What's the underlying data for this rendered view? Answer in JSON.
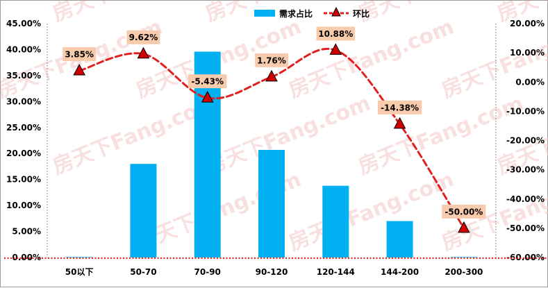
{
  "chart_data": {
    "type": "bar+line",
    "categories": [
      "50以下",
      "50-70",
      "70-90",
      "90-120",
      "120-144",
      "144-200",
      "200-300"
    ],
    "series": [
      {
        "name": "需求占比",
        "type": "bar",
        "axis": "left",
        "color": "#00b0f0",
        "values": [
          0.1,
          18.0,
          39.6,
          20.7,
          13.8,
          7.0,
          0.1
        ]
      },
      {
        "name": "环比",
        "type": "line",
        "axis": "right",
        "color": "#e02020",
        "marker": "triangle",
        "marker_color": "#d00000",
        "label_bg": "#f8cbad",
        "values": [
          3.85,
          9.62,
          -5.43,
          1.76,
          10.88,
          -14.38,
          -50.0
        ],
        "labels": [
          "3.85%",
          "9.62%",
          "-5.43%",
          "1.76%",
          "10.88%",
          "-14.38%",
          "-50.00%"
        ]
      }
    ],
    "y_left": {
      "min": 0,
      "max": 45,
      "step": 5,
      "ticks": [
        "0.00%",
        "5.00%",
        "10.00%",
        "15.00%",
        "20.00%",
        "25.00%",
        "30.00%",
        "35.00%",
        "40.00%",
        "45.00%"
      ]
    },
    "y_right": {
      "min": -60,
      "max": 20,
      "step": 10,
      "ticks": [
        "-60.00%",
        "-50.00%",
        "-40.00%",
        "-30.00%",
        "-20.00%",
        "-10.00%",
        "0.00%",
        "10.00%",
        "20.00%"
      ]
    },
    "legend": {
      "position": "top-center",
      "items": [
        "需求占比",
        "环比"
      ]
    },
    "grid": false,
    "watermark": "房天下Fang.com"
  }
}
